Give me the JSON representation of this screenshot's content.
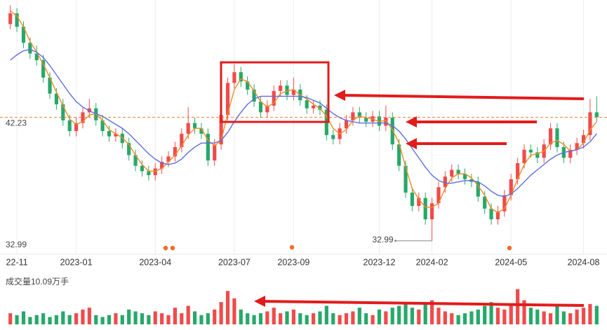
{
  "chart_data": [
    {
      "type": "candlestick",
      "categories": [
        null,
        "22-11",
        null,
        null,
        null,
        null,
        null,
        null,
        null,
        null,
        "2023-01",
        null,
        null,
        null,
        null,
        null,
        null,
        null,
        null,
        null,
        null,
        null,
        "2023-04",
        null,
        null,
        null,
        null,
        null,
        null,
        null,
        null,
        null,
        null,
        null,
        "2023-07",
        null,
        null,
        null,
        null,
        null,
        null,
        null,
        null,
        "2023-09",
        null,
        null,
        null,
        null,
        null,
        null,
        null,
        null,
        null,
        null,
        null,
        null,
        "2023-12",
        null,
        null,
        null,
        null,
        null,
        null,
        null,
        "2024-02",
        null,
        null,
        null,
        null,
        null,
        null,
        null,
        null,
        null,
        null,
        null,
        "2024-05",
        null,
        null,
        null,
        null,
        null,
        null,
        null,
        null,
        null,
        null,
        "2024-08",
        null,
        null
      ],
      "open": [
        49.2,
        50.0,
        49.0,
        47.8,
        47.0,
        46.5,
        45.2,
        44.0,
        43.2,
        42.0,
        41.2,
        41.8,
        42.6,
        42.9,
        42.0,
        41.2,
        40.8,
        41.0,
        40.3,
        39.4,
        38.6,
        38.2,
        37.9,
        38.4,
        38.9,
        39.3,
        40.0,
        41.0,
        41.8,
        41.4,
        41.0,
        39.0,
        40.2,
        42.4,
        44.8,
        45.6,
        44.9,
        44.3,
        43.4,
        42.6,
        43.1,
        44.2,
        44.6,
        43.9,
        44.3,
        43.5,
        42.9,
        43.1,
        42.8,
        40.9,
        40.6,
        41.4,
        42.0,
        42.6,
        42.2,
        41.9,
        42.3,
        41.6,
        42.2,
        40.2,
        38.6,
        36.6,
        35.6,
        36.2,
        34.6,
        35.8,
        37.0,
        37.8,
        38.3,
        38.0,
        37.6,
        37.4,
        36.3,
        35.4,
        34.6,
        35.2,
        36.4,
        37.6,
        38.8,
        39.8,
        39.6,
        39.2,
        40.2,
        41.4,
        40.0,
        39.2,
        39.8,
        40.3,
        40.9,
        42.6
      ],
      "high": [
        50.6,
        50.4,
        49.4,
        48.2,
        47.6,
        46.9,
        45.6,
        44.4,
        43.6,
        42.4,
        42.2,
        43.0,
        43.6,
        43.3,
        42.4,
        41.6,
        41.4,
        41.4,
        40.7,
        39.8,
        39.0,
        38.6,
        38.8,
        39.3,
        39.7,
        40.4,
        41.4,
        43.0,
        42.2,
        41.8,
        41.4,
        40.6,
        42.8,
        45.2,
        46.2,
        46.0,
        45.3,
        44.7,
        43.8,
        43.5,
        44.6,
        45.0,
        45.0,
        45.2,
        44.7,
        43.9,
        43.5,
        43.5,
        43.2,
        41.3,
        41.8,
        42.4,
        43.0,
        43.0,
        42.6,
        42.7,
        42.7,
        43.1,
        42.6,
        40.6,
        39.0,
        37.0,
        36.6,
        36.6,
        36.2,
        37.4,
        38.2,
        38.7,
        38.7,
        38.4,
        38.0,
        37.8,
        36.7,
        35.8,
        35.6,
        36.8,
        38.0,
        39.2,
        40.2,
        40.2,
        40.0,
        40.6,
        41.8,
        41.8,
        40.4,
        40.2,
        40.7,
        41.3,
        43.6,
        43.8
      ],
      "low": [
        48.8,
        48.6,
        47.4,
        46.6,
        46.1,
        44.8,
        43.6,
        42.8,
        41.6,
        40.8,
        40.8,
        41.4,
        42.2,
        41.6,
        40.8,
        40.4,
        40.4,
        39.9,
        39.0,
        38.2,
        37.8,
        37.5,
        37.5,
        38.0,
        38.5,
        38.9,
        39.6,
        40.6,
        41.0,
        40.6,
        38.6,
        38.6,
        39.8,
        42.0,
        44.4,
        44.5,
        43.9,
        43.0,
        42.2,
        42.2,
        42.7,
        43.8,
        43.5,
        43.5,
        43.1,
        42.5,
        42.5,
        42.4,
        40.5,
        40.2,
        40.2,
        41.0,
        41.6,
        41.8,
        41.5,
        41.5,
        41.2,
        41.2,
        39.8,
        38.2,
        36.2,
        35.2,
        35.2,
        34.2,
        32.99,
        35.4,
        36.6,
        37.4,
        37.6,
        37.2,
        37.0,
        35.9,
        35.0,
        34.2,
        34.2,
        34.8,
        36.0,
        37.2,
        38.4,
        39.2,
        38.8,
        38.8,
        39.8,
        39.6,
        38.8,
        38.8,
        39.4,
        39.9,
        40.5,
        41.9
      ],
      "close": [
        50.0,
        49.0,
        47.8,
        47.0,
        46.5,
        45.2,
        44.0,
        43.2,
        42.0,
        41.2,
        41.8,
        42.6,
        42.9,
        42.0,
        41.2,
        40.8,
        41.0,
        40.3,
        39.4,
        38.6,
        38.2,
        37.9,
        38.4,
        38.9,
        39.3,
        40.0,
        41.0,
        41.8,
        41.4,
        41.0,
        39.0,
        40.2,
        42.4,
        44.8,
        45.6,
        44.9,
        44.3,
        43.4,
        42.6,
        43.1,
        44.2,
        44.6,
        43.9,
        44.3,
        43.5,
        42.9,
        43.1,
        42.8,
        40.9,
        40.6,
        41.4,
        42.0,
        42.6,
        42.2,
        41.9,
        42.3,
        41.6,
        42.2,
        40.2,
        38.6,
        36.6,
        35.6,
        36.2,
        34.6,
        35.8,
        37.0,
        37.8,
        38.3,
        38.0,
        37.6,
        37.4,
        36.3,
        35.4,
        34.6,
        35.2,
        36.4,
        37.6,
        38.8,
        39.8,
        39.6,
        39.2,
        40.2,
        41.4,
        40.0,
        39.2,
        39.8,
        40.3,
        40.9,
        42.6,
        42.23
      ],
      "up_color": "#ef4b4b",
      "down_color": "#27a86a",
      "price_line_color": "#f07a3a",
      "ylim": [
        32.4,
        51
      ],
      "yticks": [
        32.99
      ],
      "series": [
        {
          "color": "#f08a24",
          "values": [
            50.2,
            49.8,
            49.0,
            47.9,
            47.1,
            46.2,
            45.2,
            44.1,
            43.1,
            42.1,
            41.7,
            41.9,
            42.4,
            42.5,
            42.0,
            41.3,
            41.0,
            40.7,
            40.2,
            39.4,
            38.7,
            38.2,
            38.2,
            38.4,
            38.9,
            39.4,
            40.1,
            40.9,
            41.4,
            41.4,
            40.5,
            40.1,
            40.5,
            42.5,
            44.3,
            45.1,
            44.9,
            44.2,
            43.4,
            43.0,
            43.3,
            44.0,
            44.2,
            44.3,
            43.9,
            43.6,
            43.2,
            42.9,
            42.3,
            41.4,
            41.0,
            41.3,
            42.0,
            42.3,
            42.2,
            42.1,
            41.9,
            42.0,
            41.3,
            40.3,
            38.5,
            36.9,
            36.1,
            35.5,
            35.5,
            35.8,
            36.9,
            37.7,
            38.0,
            38.0,
            37.7,
            37.1,
            36.4,
            35.4,
            35.1,
            35.4,
            36.4,
            37.6,
            38.7,
            39.4,
            39.5,
            39.7,
            40.3,
            40.5,
            40.2,
            39.7,
            39.8,
            40.3,
            41.3,
            41.9
          ]
        },
        {
          "color": "#5b6ee1",
          "values": [
            46.5,
            46.9,
            47.2,
            47.3,
            47.1,
            46.7,
            46.1,
            45.4,
            44.7,
            44.0,
            43.4,
            43.0,
            42.7,
            42.5,
            42.3,
            42.0,
            41.7,
            41.4,
            41.0,
            40.5,
            40.0,
            39.5,
            39.1,
            38.8,
            38.7,
            38.8,
            39.1,
            39.6,
            40.0,
            40.3,
            40.3,
            40.3,
            40.5,
            41.1,
            41.9,
            42.6,
            43.2,
            43.6,
            43.8,
            43.8,
            43.8,
            43.8,
            43.8,
            43.8,
            43.8,
            43.7,
            43.5,
            43.3,
            42.9,
            42.5,
            42.2,
            42.0,
            41.9,
            41.8,
            41.8,
            41.8,
            41.8,
            41.8,
            41.6,
            41.2,
            40.6,
            39.9,
            39.2,
            38.5,
            37.9,
            37.5,
            37.3,
            37.3,
            37.4,
            37.5,
            37.5,
            37.4,
            37.1,
            36.7,
            36.4,
            36.3,
            36.5,
            36.9,
            37.4,
            37.9,
            38.3,
            38.7,
            39.1,
            39.4,
            39.6,
            39.7,
            39.8,
            40.0,
            40.4,
            41.0
          ]
        }
      ]
    },
    {
      "type": "bar",
      "title": "成交量10.09万手",
      "ylim": [
        0,
        20
      ],
      "values": [
        6,
        5,
        7,
        4,
        5,
        6,
        4,
        5,
        7,
        5,
        6,
        8,
        9,
        5,
        4,
        5,
        6,
        5,
        8,
        7,
        6,
        5,
        7,
        6,
        5,
        9,
        6,
        10,
        7,
        5,
        6,
        8,
        12,
        18,
        14,
        8,
        6,
        5,
        6,
        7,
        9,
        6,
        7,
        8,
        6,
        5,
        6,
        7,
        10,
        6,
        5,
        6,
        7,
        9,
        6,
        5,
        8,
        7,
        9,
        10,
        12,
        9,
        8,
        11,
        13,
        9,
        7,
        6,
        5,
        6,
        7,
        8,
        10,
        12,
        9,
        8,
        11,
        19,
        13,
        9,
        8,
        7,
        6,
        10,
        7,
        6,
        8,
        9,
        11,
        10
      ]
    }
  ]
}
